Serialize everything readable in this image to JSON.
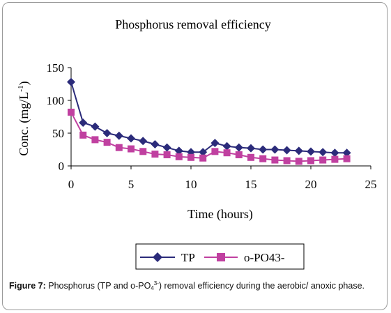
{
  "chart_data": {
    "type": "line",
    "title": "Phosphorus removal efficiency",
    "xlabel": "Time (hours)",
    "ylabel_main": "Conc. (mg/L",
    "ylabel_sup": "-1",
    "ylabel_end": ")",
    "xlim": [
      0,
      25
    ],
    "ylim": [
      0,
      150
    ],
    "xticks": [
      0,
      5,
      10,
      15,
      20,
      25
    ],
    "yticks": [
      0,
      50,
      100,
      150
    ],
    "grid": false,
    "legend_position": "bottom",
    "x": [
      0,
      1,
      2,
      3,
      4,
      5,
      6,
      7,
      8,
      9,
      10,
      11,
      12,
      13,
      14,
      15,
      16,
      17,
      18,
      19,
      20,
      21,
      22,
      23
    ],
    "series": [
      {
        "name": "TP",
        "color": "#2b2b7a",
        "marker": "diamond",
        "values": [
          128,
          66,
          60,
          50,
          46,
          42,
          38,
          33,
          28,
          23,
          21,
          21,
          35,
          30,
          28,
          27,
          25,
          25,
          24,
          23,
          22,
          21,
          20,
          20
        ]
      },
      {
        "name": "o-PO43-",
        "color": "#c040a0",
        "marker": "square",
        "values": [
          82,
          47,
          40,
          36,
          28,
          26,
          22,
          18,
          17,
          14,
          13,
          12,
          22,
          20,
          17,
          13,
          11,
          9,
          8,
          7,
          8,
          9,
          10,
          11
        ]
      }
    ]
  },
  "caption": {
    "label": "Figure 7:",
    "text_a": " Phosphorus (TP and o-PO",
    "sub": "4",
    "sup": "3-",
    "text_b": ") removal efficiency during the aerobic/ anoxic phase."
  }
}
